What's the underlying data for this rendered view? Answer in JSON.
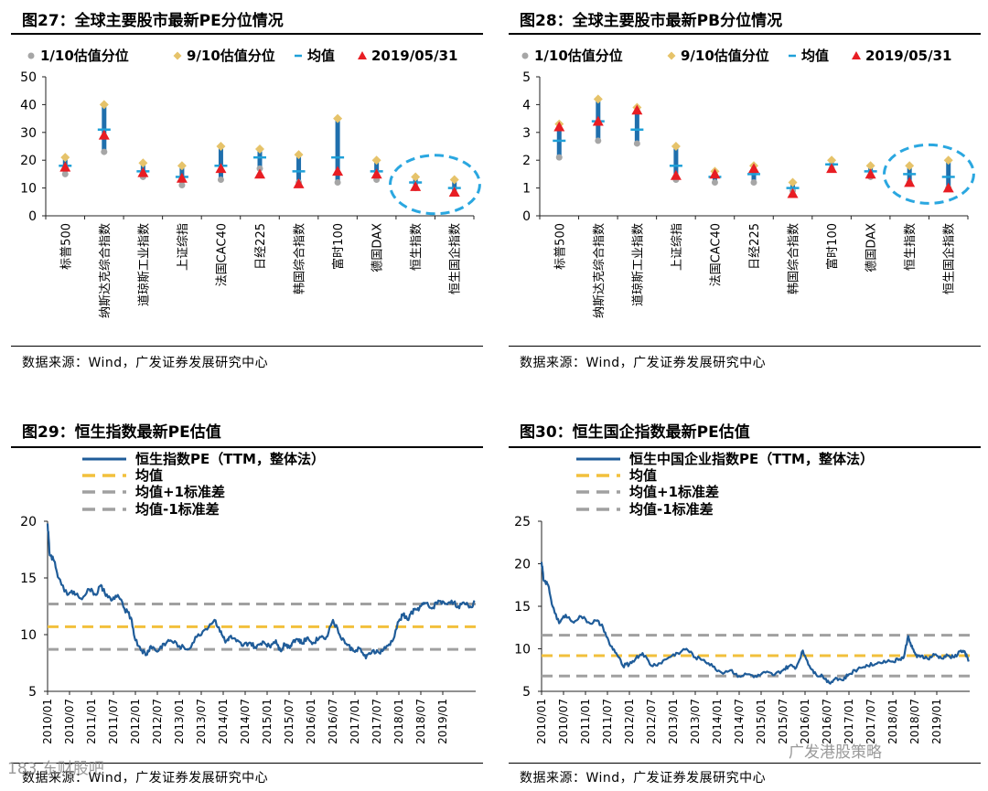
{
  "watermark_left": "183 东财股吧",
  "watermark_right": "广发港股策略",
  "chart_data": [
    {
      "type": "scatter",
      "id": "fig27",
      "title": "图27：全球主要股市最新PE分位情况",
      "legend": [
        "1/10估值分位",
        "9/10估值分位",
        "均值",
        "2019/05/31"
      ],
      "categories": [
        "标普500",
        "纳斯达克综合指数",
        "道琼斯工业指数",
        "上证综指",
        "法国CAC40",
        "日经225",
        "韩国综合指数",
        "富时100",
        "德国DAX",
        "恒生指数",
        "恒生国企指数"
      ],
      "p10": [
        15,
        23,
        14,
        11,
        13,
        17,
        12,
        12,
        13,
        10,
        8
      ],
      "p90": [
        21,
        40,
        19,
        18,
        25,
        24,
        22,
        35,
        20,
        14,
        13
      ],
      "mean": [
        18,
        31,
        16,
        14,
        18,
        21,
        16,
        21,
        16,
        12,
        10
      ],
      "latest": [
        17.5,
        29,
        15.5,
        13.5,
        17,
        15,
        11.5,
        16,
        15,
        10.5,
        8.5
      ],
      "ylim": [
        0,
        50
      ],
      "yticks": [
        0,
        10,
        20,
        30,
        40,
        50
      ],
      "highlight": [
        9,
        10
      ],
      "source": "数据来源：Wind，广发证券发展研究中心"
    },
    {
      "type": "scatter",
      "id": "fig28",
      "title": "图28：全球主要股市最新PB分位情况",
      "legend": [
        "1/10估值分位",
        "9/10估值分位",
        "均值",
        "2019/05/31"
      ],
      "categories": [
        "标普500",
        "纳斯达克综合指数",
        "道琼斯工业指数",
        "上证综指",
        "法国CAC40",
        "日经225",
        "韩国综合指数",
        "富时100",
        "德国DAX",
        "恒生指数",
        "恒生国企指数"
      ],
      "p10": [
        2.1,
        2.7,
        2.6,
        1.3,
        1.2,
        1.2,
        0.9,
        1.7,
        1.4,
        1.2,
        1.0
      ],
      "p90": [
        3.3,
        4.2,
        3.9,
        2.5,
        1.6,
        1.8,
        1.2,
        2.0,
        1.8,
        1.8,
        2.0
      ],
      "mean": [
        2.7,
        3.4,
        3.1,
        1.8,
        1.4,
        1.5,
        1.0,
        1.85,
        1.6,
        1.5,
        1.4
      ],
      "latest": [
        3.2,
        3.4,
        3.8,
        1.45,
        1.5,
        1.7,
        0.8,
        1.7,
        1.5,
        1.2,
        1.0
      ],
      "ylim": [
        0,
        5
      ],
      "yticks": [
        0,
        1,
        2,
        3,
        4,
        5
      ],
      "highlight": [
        9,
        10
      ],
      "source": "数据来源：Wind，广发证券发展研究中心"
    },
    {
      "type": "line",
      "id": "fig29",
      "title": "图29：恒生指数最新PE估值",
      "legend": [
        "恒生指数PE（TTM，整体法）",
        "均值",
        "均值+1标准差",
        "均值-1标准差"
      ],
      "x_labels": [
        "2010/01",
        "2010/07",
        "2011/01",
        "2011/07",
        "2012/01",
        "2012/07",
        "2013/01",
        "2013/07",
        "2014/01",
        "2014/07",
        "2015/01",
        "2015/07",
        "2016/01",
        "2016/07",
        "2017/01",
        "2017/07",
        "2018/01",
        "2018/07",
        "2019/01"
      ],
      "anchors_t": [
        0,
        0.1,
        0.3,
        0.5,
        0.9,
        1.2,
        1.5,
        1.9,
        2.2,
        2.4,
        2.6,
        2.9,
        3.2,
        3.5,
        3.8,
        4.0,
        4.3,
        4.5,
        4.7,
        5.0,
        5.3,
        5.6,
        6.0,
        6.4,
        6.8,
        7.2,
        7.6,
        7.9,
        8.1,
        8.3,
        8.6,
        8.9,
        9.2,
        9.5,
        9.8,
        10.1,
        10.4,
        10.6,
        10.8,
        11.0,
        11.2,
        11.4,
        11.6,
        11.8,
        12.1,
        12.4,
        12.7,
        13.0,
        13.3,
        13.6,
        13.9,
        14.2,
        14.5,
        14.8,
        15.1,
        15.4,
        15.7,
        16.0,
        16.2,
        16.4,
        16.6,
        16.8,
        17.0,
        17.2,
        17.5,
        17.8,
        18.1,
        18.4,
        18.7,
        19.0,
        19.3,
        19.45
      ],
      "anchors_v": [
        19.8,
        17.0,
        16.5,
        15.0,
        13.5,
        13.8,
        13.2,
        14.0,
        13.5,
        14.3,
        13.7,
        13.0,
        13.5,
        12.3,
        11.5,
        9.5,
        8.6,
        8.2,
        9.0,
        8.5,
        9.2,
        9.5,
        9.0,
        8.7,
        9.8,
        10.5,
        11.3,
        10.3,
        9.3,
        9.8,
        9.4,
        9.0,
        9.3,
        8.8,
        9.4,
        9.0,
        9.5,
        8.6,
        9.2,
        8.9,
        9.5,
        9.6,
        9.2,
        9.7,
        9.3,
        9.8,
        9.8,
        11.3,
        10.0,
        9.2,
        8.6,
        8.8,
        7.9,
        8.6,
        8.4,
        8.8,
        9.4,
        11.2,
        11.8,
        11.3,
        12.0,
        12.2,
        12.5,
        12.8,
        12.3,
        13.0,
        12.7,
        13.0,
        12.5,
        12.7,
        12.4,
        13.0
      ],
      "mean": 10.7,
      "plus1sd": 12.7,
      "minus1sd": 8.7,
      "ylim": [
        5,
        20
      ],
      "yticks": [
        5,
        10,
        15,
        20
      ],
      "source": "数据来源：Wind，广发证券发展研究中心"
    },
    {
      "type": "line",
      "id": "fig30",
      "title": "图30：恒生国企指数最新PE估值",
      "legend": [
        "恒生中国企业指数PE（TTM，整体法）",
        "均值",
        "均值+1标准差",
        "均值-1标准差"
      ],
      "x_labels": [
        "2010/01",
        "2010/07",
        "2011/01",
        "2011/07",
        "2012/01",
        "2012/07",
        "2013/01",
        "2013/07",
        "2014/01",
        "2014/07",
        "2015/01",
        "2015/07",
        "2016/01",
        "2016/07",
        "2017/01",
        "2017/07",
        "2018/01",
        "2018/07",
        "2019/01"
      ],
      "anchors_t": [
        0,
        0.1,
        0.3,
        0.5,
        0.8,
        1.1,
        1.4,
        1.8,
        2.2,
        2.5,
        2.8,
        3.1,
        3.4,
        3.7,
        4.0,
        4.3,
        4.6,
        5.0,
        5.4,
        5.8,
        6.2,
        6.6,
        7.0,
        7.4,
        7.8,
        8.2,
        8.6,
        9.0,
        9.4,
        9.8,
        10.2,
        10.6,
        11.0,
        11.3,
        11.6,
        11.9,
        12.2,
        12.5,
        12.8,
        13.1,
        13.4,
        13.7,
        14.0,
        14.4,
        14.8,
        15.2,
        15.6,
        16.0,
        16.3,
        16.5,
        16.7,
        16.9,
        17.1,
        17.3,
        17.6,
        17.9,
        18.2,
        18.5,
        18.8,
        19.1,
        19.3,
        19.45
      ],
      "anchors_v": [
        20.2,
        18.0,
        17.5,
        15.0,
        13.0,
        14.0,
        13.2,
        13.8,
        13.0,
        13.3,
        12.5,
        10.5,
        9.5,
        8.0,
        8.2,
        8.9,
        9.5,
        8.0,
        8.3,
        9.0,
        9.5,
        10.0,
        9.0,
        8.7,
        7.9,
        7.2,
        7.5,
        6.8,
        7.0,
        6.7,
        7.2,
        6.9,
        7.5,
        8.0,
        7.8,
        9.8,
        8.0,
        7.0,
        6.8,
        6.0,
        6.6,
        6.3,
        7.0,
        7.6,
        8.1,
        8.2,
        8.6,
        8.5,
        8.8,
        9.0,
        11.5,
        10.0,
        9.0,
        9.2,
        8.8,
        9.3,
        8.9,
        9.2,
        9.0,
        9.8,
        9.5,
        8.5
      ],
      "mean": 9.2,
      "plus1sd": 11.6,
      "minus1sd": 6.8,
      "ylim": [
        5,
        25
      ],
      "yticks": [
        5,
        10,
        15,
        20,
        25
      ],
      "source": "数据来源：Wind，广发证券发展研究中心"
    }
  ],
  "colors": {
    "p10": "#a6a6a6",
    "p90": "#e6c36a",
    "mean": "#1fa0d8",
    "latest": "#e81d23",
    "bar": "#1f6fad",
    "line": "#1f5c99",
    "mean_line": "#f2c03c",
    "sd_line": "#a0a0a0",
    "highlight_circle": "#2aa7e0"
  }
}
